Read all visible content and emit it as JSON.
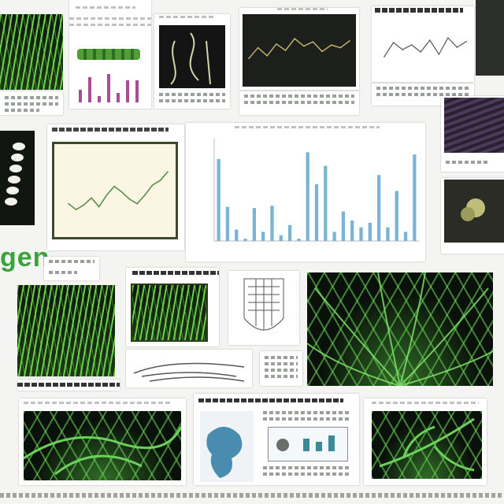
{
  "headline": "gen",
  "colors": {
    "accent": "#3aa33a",
    "bar": "#79b4d6",
    "line_dark": "#c9b86a",
    "line_light": "#5a8f4d"
  },
  "chart_data": [
    {
      "type": "bar",
      "title": "",
      "xlabel": "",
      "ylabel": "",
      "categories": [
        "1",
        "2",
        "3",
        "4",
        "5",
        "6",
        "7",
        "8",
        "9",
        "10",
        "11",
        "12",
        "13",
        "14",
        "15",
        "16",
        "17",
        "18",
        "19",
        "20",
        "21",
        "22",
        "23"
      ],
      "values": [
        0.72,
        0.3,
        0.1,
        0.02,
        0.29,
        0.08,
        0.31,
        0.05,
        0.14,
        0.02,
        0.78,
        0.5,
        0.66,
        0.08,
        0.26,
        0.18,
        0.12,
        0.16,
        0.58,
        0.12,
        0.44,
        0.08,
        0.76
      ],
      "ylim": [
        0,
        0.9
      ],
      "grid": false
    },
    {
      "type": "line",
      "title": "",
      "x": [
        1,
        2,
        3,
        4,
        5,
        6,
        7,
        8,
        9,
        10,
        11,
        12
      ],
      "values": [
        0.35,
        0.55,
        0.4,
        0.62,
        0.5,
        0.72,
        0.58,
        0.66,
        0.48,
        0.6,
        0.55,
        0.68
      ],
      "ylim": [
        0,
        1
      ]
    },
    {
      "type": "line",
      "title": "",
      "x": [
        1,
        2,
        3,
        4,
        5,
        6,
        7,
        8,
        9,
        10
      ],
      "values": [
        0.3,
        0.6,
        0.45,
        0.55,
        0.4,
        0.65,
        0.35,
        0.7,
        0.5,
        0.62
      ],
      "ylim": [
        0,
        1
      ]
    },
    {
      "type": "line",
      "title": "",
      "x": [
        1,
        2,
        3,
        4,
        5,
        6,
        7,
        8,
        9,
        10,
        11,
        12,
        13,
        14
      ],
      "values": [
        0.3,
        0.2,
        0.28,
        0.4,
        0.25,
        0.45,
        0.6,
        0.5,
        0.38,
        0.3,
        0.45,
        0.62,
        0.7,
        0.85
      ],
      "ylim": [
        0,
        1
      ]
    }
  ]
}
